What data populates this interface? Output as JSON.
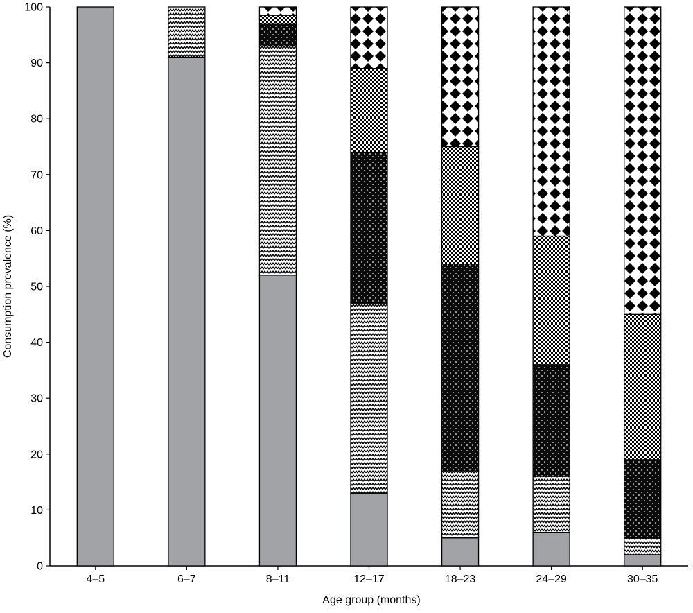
{
  "chart_data": {
    "type": "bar",
    "stacked": true,
    "xlabel": "Age group (months)",
    "ylabel": "Consumption prevalence (%)",
    "ylim": [
      0,
      100
    ],
    "yticks": [
      0,
      10,
      20,
      30,
      40,
      50,
      60,
      70,
      80,
      90,
      100
    ],
    "categories": [
      "4–5",
      "6–7",
      "8–11",
      "12–17",
      "18–23",
      "24–29",
      "30–35"
    ],
    "grid": false,
    "legend": "none",
    "series": [
      {
        "pattern": "solid-grey",
        "color": "#a1a3a6",
        "values": [
          100,
          91,
          52,
          13,
          5,
          6,
          2
        ]
      },
      {
        "pattern": "zigzag",
        "color": "#000000",
        "values": [
          0,
          9,
          41,
          34,
          12,
          10,
          3
        ]
      },
      {
        "pattern": "dotted-black",
        "color": "#000000",
        "values": [
          0,
          0,
          4,
          27,
          37,
          20,
          14
        ]
      },
      {
        "pattern": "checker-small",
        "color": "#000000",
        "values": [
          0,
          0,
          1.5,
          15,
          21,
          23,
          26
        ]
      },
      {
        "pattern": "diamond",
        "color": "#000000",
        "values": [
          0,
          0,
          1.5,
          11,
          25,
          41,
          55
        ]
      }
    ]
  }
}
